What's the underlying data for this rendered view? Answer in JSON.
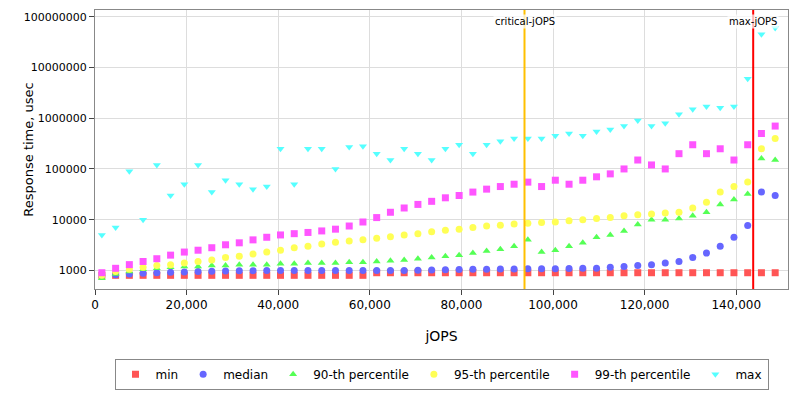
{
  "chart_data": {
    "type": "scatter",
    "x_label": "jOPS",
    "y_label": "Response time, usec",
    "log": "y",
    "grid": true,
    "legend": "bottom",
    "xlim": [
      0,
      151300
    ],
    "xticks": [
      0,
      {
        "value": 20000,
        "label": "20,000"
      },
      {
        "value": 40000,
        "label": "40,000"
      },
      {
        "value": 60000,
        "label": "60,000"
      },
      {
        "value": 80000,
        "label": "80,000"
      },
      {
        "value": 100000,
        "label": "100,000"
      },
      {
        "value": 120000,
        "label": "120,000"
      },
      {
        "value": 140000,
        "label": "140,000"
      }
    ],
    "ylim": [
      430,
      136000000
    ],
    "yticks": [
      1000,
      10000,
      100000,
      1000000,
      10000000,
      100000000
    ],
    "vlines": [
      {
        "x": 93770,
        "label": "critical-jOPS",
        "color": "#ffc000"
      },
      {
        "x": 143700,
        "label": "max-jOPS",
        "color": "#ff0000"
      }
    ],
    "x": [
      1500,
      4500,
      7500,
      10500,
      13500,
      16500,
      19500,
      22500,
      25500,
      28500,
      31500,
      34500,
      37500,
      40500,
      43500,
      46500,
      49500,
      52500,
      55500,
      58500,
      61500,
      64500,
      67500,
      70500,
      73500,
      76500,
      79500,
      82500,
      85500,
      88500,
      91500,
      94500,
      97500,
      100500,
      103500,
      106500,
      109500,
      112500,
      115500,
      118500,
      121500,
      124500,
      127500,
      130500,
      133500,
      136500,
      139500,
      142500,
      145500,
      148500
    ],
    "series": [
      {
        "name": "min",
        "color": "#ff5555",
        "marker": "square",
        "values": [
          800,
          800,
          800,
          800,
          800,
          800,
          800,
          800,
          800,
          800,
          800,
          800,
          800,
          800,
          800,
          800,
          800,
          800,
          800,
          800,
          900,
          900,
          900,
          900,
          900,
          900,
          900,
          900,
          900,
          900,
          900,
          900,
          900,
          900,
          900,
          900,
          900,
          900,
          900,
          900,
          900,
          900,
          900,
          900,
          900,
          900,
          900,
          900,
          900,
          900
        ]
      },
      {
        "name": "median",
        "color": "#6666ff",
        "marker": "circle",
        "values": [
          800,
          820,
          850,
          880,
          900,
          920,
          930,
          950,
          960,
          970,
          980,
          990,
          1000,
          1000,
          1000,
          1000,
          1000,
          1000,
          1000,
          1000,
          1000,
          1000,
          1000,
          1010,
          1020,
          1030,
          1040,
          1050,
          1050,
          1060,
          1070,
          1080,
          1080,
          1080,
          1090,
          1100,
          1100,
          1150,
          1200,
          1250,
          1300,
          1400,
          1500,
          1800,
          2200,
          3000,
          4500,
          7700,
          35000,
          30000
        ]
      },
      {
        "name": "90-th percentile",
        "color": "#55ff55",
        "marker": "triangle-up",
        "values": [
          700,
          850,
          950,
          1050,
          1100,
          1150,
          1200,
          1200,
          1250,
          1250,
          1300,
          1300,
          1300,
          1350,
          1350,
          1400,
          1400,
          1400,
          1450,
          1450,
          1500,
          1550,
          1600,
          1700,
          1800,
          1900,
          2000,
          2200,
          2400,
          2600,
          3000,
          4000,
          2300,
          2500,
          3000,
          3500,
          4500,
          5000,
          6000,
          8000,
          10000,
          10000,
          10500,
          12000,
          14000,
          20000,
          25000,
          32000,
          160000,
          150000
        ]
      },
      {
        "name": "95-th percentile",
        "color": "#ffff55",
        "marker": "circle",
        "values": [
          800,
          950,
          1050,
          1150,
          1250,
          1300,
          1400,
          1500,
          1600,
          1800,
          1900,
          2100,
          2300,
          2500,
          2800,
          3000,
          3300,
          3600,
          3800,
          4000,
          4300,
          4600,
          5000,
          5300,
          5800,
          6200,
          6500,
          7000,
          7500,
          7800,
          8200,
          8500,
          8800,
          9000,
          9500,
          10000,
          10500,
          11000,
          12000,
          12500,
          13000,
          13500,
          14000,
          17000,
          22000,
          35000,
          45000,
          55000,
          250000,
          400000
        ]
      },
      {
        "name": "99-th percentile",
        "color": "#ff55ff",
        "marker": "square",
        "values": [
          900,
          1100,
          1300,
          1500,
          1700,
          2000,
          2300,
          2500,
          2800,
          3200,
          3500,
          4000,
          4500,
          5000,
          5300,
          5600,
          6000,
          6500,
          7500,
          9000,
          11000,
          14000,
          17000,
          20000,
          23000,
          27000,
          30000,
          35000,
          40000,
          45000,
          50000,
          55000,
          45000,
          60000,
          50000,
          60000,
          70000,
          80000,
          100000,
          150000,
          120000,
          100000,
          200000,
          300000,
          200000,
          250000,
          150000,
          300000,
          500000,
          700000
        ]
      },
      {
        "name": "max",
        "color": "#55ffff",
        "marker": "triangle-down",
        "values": [
          5000,
          7000,
          90000,
          10000,
          120000,
          30000,
          50000,
          120000,
          35000,
          60000,
          50000,
          40000,
          45000,
          250000,
          50000,
          250000,
          250000,
          100000,
          270000,
          280000,
          200000,
          150000,
          250000,
          200000,
          150000,
          250000,
          300000,
          200000,
          300000,
          350000,
          400000,
          400000,
          400000,
          450000,
          500000,
          450000,
          550000,
          600000,
          700000,
          900000,
          700000,
          800000,
          1200000,
          1500000,
          1700000,
          1600000,
          1700000,
          6000000,
          45000000,
          60000000
        ]
      }
    ]
  }
}
